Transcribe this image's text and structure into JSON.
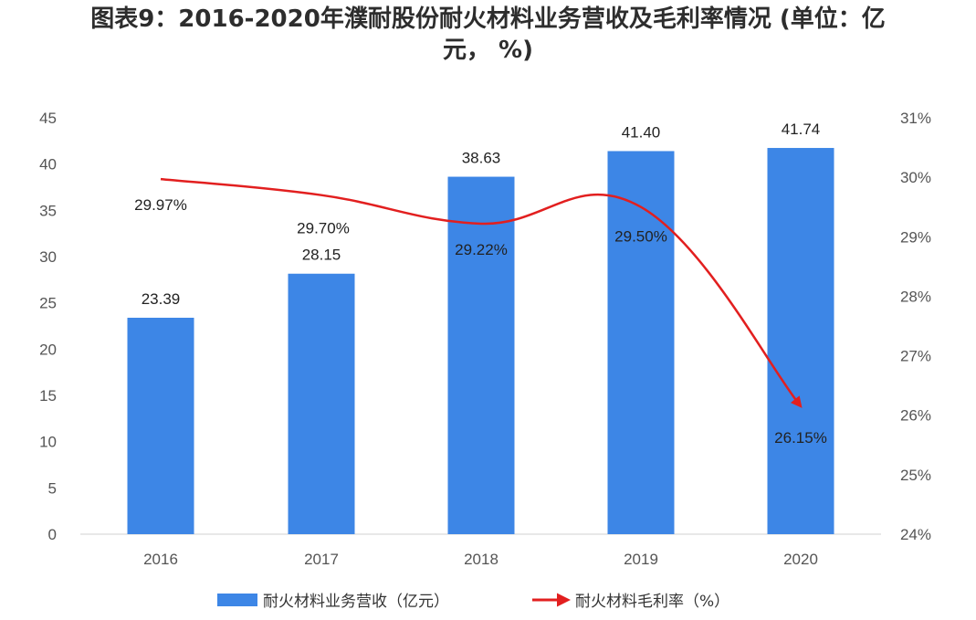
{
  "title_line1": "图表9：2016-2020年濮耐股份耐火材料业务营收及毛利率情况 (单位：亿",
  "title_line2": "元，  %)",
  "chart_data": {
    "type": "bar",
    "title": "图表9：2016-2020年濮耐股份耐火材料业务营收及毛利率情况 (单位：亿元，%)",
    "categories": [
      "2016",
      "2017",
      "2018",
      "2019",
      "2020"
    ],
    "series": [
      {
        "name": "耐火材料业务营收（亿元）",
        "type": "bar",
        "axis": "left",
        "values": [
          23.39,
          28.15,
          38.63,
          41.4,
          41.74
        ],
        "labels": [
          "23.39",
          "28.15",
          "38.63",
          "41.40",
          "41.74"
        ],
        "color": "#3d86e6"
      },
      {
        "name": "耐火材料毛利率（%）",
        "type": "line",
        "axis": "right",
        "values": [
          29.97,
          29.7,
          29.22,
          29.5,
          26.15
        ],
        "labels": [
          "29.97%",
          "29.70%",
          "29.22%",
          "29.50%",
          "26.15%"
        ],
        "color": "#e21f1f"
      }
    ],
    "y_left": {
      "range": [
        0,
        45
      ],
      "ticks": [
        0,
        5,
        10,
        15,
        20,
        25,
        30,
        35,
        40,
        45
      ],
      "tick_labels": [
        "0",
        "5",
        "10",
        "15",
        "20",
        "25",
        "30",
        "35",
        "40",
        "45"
      ]
    },
    "y_right": {
      "range": [
        24,
        31
      ],
      "ticks": [
        24,
        25,
        26,
        27,
        28,
        29,
        30,
        31
      ],
      "tick_labels": [
        "24%",
        "25%",
        "26%",
        "27%",
        "28%",
        "29%",
        "30%",
        "31%"
      ]
    },
    "grid": false,
    "legend_position": "bottom"
  }
}
